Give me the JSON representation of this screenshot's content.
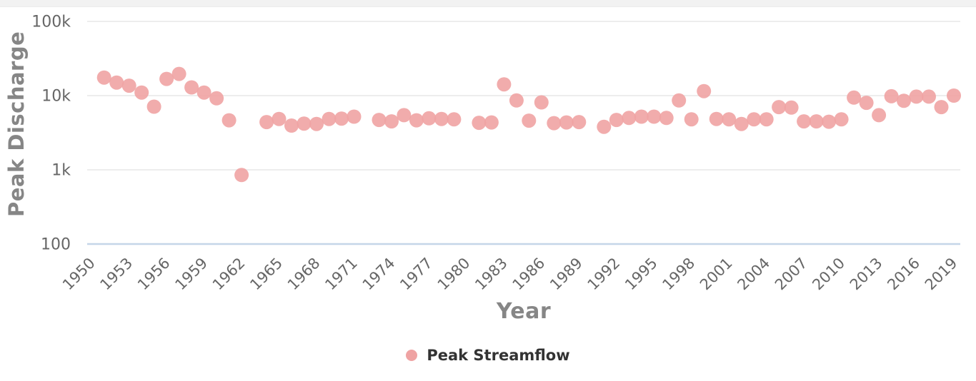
{
  "chart_data": {
    "type": "scatter",
    "title": "",
    "xlabel": "Year",
    "ylabel": "Peak Discharge",
    "legend": {
      "label": "Peak Streamflow",
      "position": "bottom-center"
    },
    "x_axis": {
      "range": [
        1950,
        2020
      ],
      "tick_years": [
        1950,
        1953,
        1956,
        1959,
        1962,
        1965,
        1968,
        1971,
        1974,
        1977,
        1980,
        1983,
        1986,
        1989,
        1992,
        1995,
        1998,
        2001,
        2004,
        2007,
        2010,
        2013,
        2016,
        2019
      ],
      "tick_label_rotation_deg": -45
    },
    "y_axis": {
      "scale": "log",
      "range": [
        100,
        100000
      ],
      "ticks": [
        {
          "label": "100k",
          "value": 100000
        },
        {
          "label": "10k",
          "value": 10000
        },
        {
          "label": "1k",
          "value": 1000
        },
        {
          "label": "100",
          "value": 100
        }
      ]
    },
    "grid": true,
    "missing_years": [
      1963,
      1972,
      1980,
      1990
    ],
    "series": [
      {
        "name": "Peak Streamflow",
        "points": [
          [
            1951,
            17500
          ],
          [
            1952,
            15000
          ],
          [
            1953,
            13600
          ],
          [
            1954,
            11000
          ],
          [
            1955,
            7100
          ],
          [
            1956,
            16800
          ],
          [
            1957,
            19600
          ],
          [
            1958,
            12900
          ],
          [
            1959,
            11000
          ],
          [
            1960,
            9200
          ],
          [
            1961,
            4650
          ],
          [
            1962,
            850
          ],
          [
            1964,
            4400
          ],
          [
            1965,
            4850
          ],
          [
            1966,
            3950
          ],
          [
            1967,
            4200
          ],
          [
            1968,
            4150
          ],
          [
            1969,
            4850
          ],
          [
            1970,
            4900
          ],
          [
            1971,
            5200
          ],
          [
            1973,
            4700
          ],
          [
            1974,
            4500
          ],
          [
            1975,
            5450
          ],
          [
            1976,
            4650
          ],
          [
            1977,
            4950
          ],
          [
            1978,
            4850
          ],
          [
            1979,
            4800
          ],
          [
            1981,
            4300
          ],
          [
            1982,
            4350
          ],
          [
            1983,
            14200
          ],
          [
            1984,
            8600
          ],
          [
            1985,
            4600
          ],
          [
            1986,
            8100
          ],
          [
            1987,
            4250
          ],
          [
            1988,
            4350
          ],
          [
            1989,
            4400
          ],
          [
            1991,
            3800
          ],
          [
            1992,
            4700
          ],
          [
            1993,
            5000
          ],
          [
            1994,
            5200
          ],
          [
            1995,
            5200
          ],
          [
            1996,
            5000
          ],
          [
            1997,
            8600
          ],
          [
            1998,
            4800
          ],
          [
            1999,
            11500
          ],
          [
            2000,
            4850
          ],
          [
            2001,
            4800
          ],
          [
            2002,
            4150
          ],
          [
            2003,
            4800
          ],
          [
            2004,
            4800
          ],
          [
            2005,
            7000
          ],
          [
            2006,
            6900
          ],
          [
            2007,
            4500
          ],
          [
            2008,
            4500
          ],
          [
            2009,
            4450
          ],
          [
            2010,
            4800
          ],
          [
            2011,
            9400
          ],
          [
            2012,
            8000
          ],
          [
            2013,
            5450
          ],
          [
            2014,
            9800
          ],
          [
            2015,
            8500
          ],
          [
            2016,
            9700
          ],
          [
            2017,
            9700
          ],
          [
            2018,
            7000
          ],
          [
            2019,
            10000
          ]
        ]
      }
    ],
    "colors": {
      "marker": "#efa3a3",
      "gridline": "#e7e7e7",
      "axis_line": "#c5d6e8",
      "tick_text": "#666666",
      "title_text": "#868686",
      "legend_text": "#333333"
    }
  }
}
